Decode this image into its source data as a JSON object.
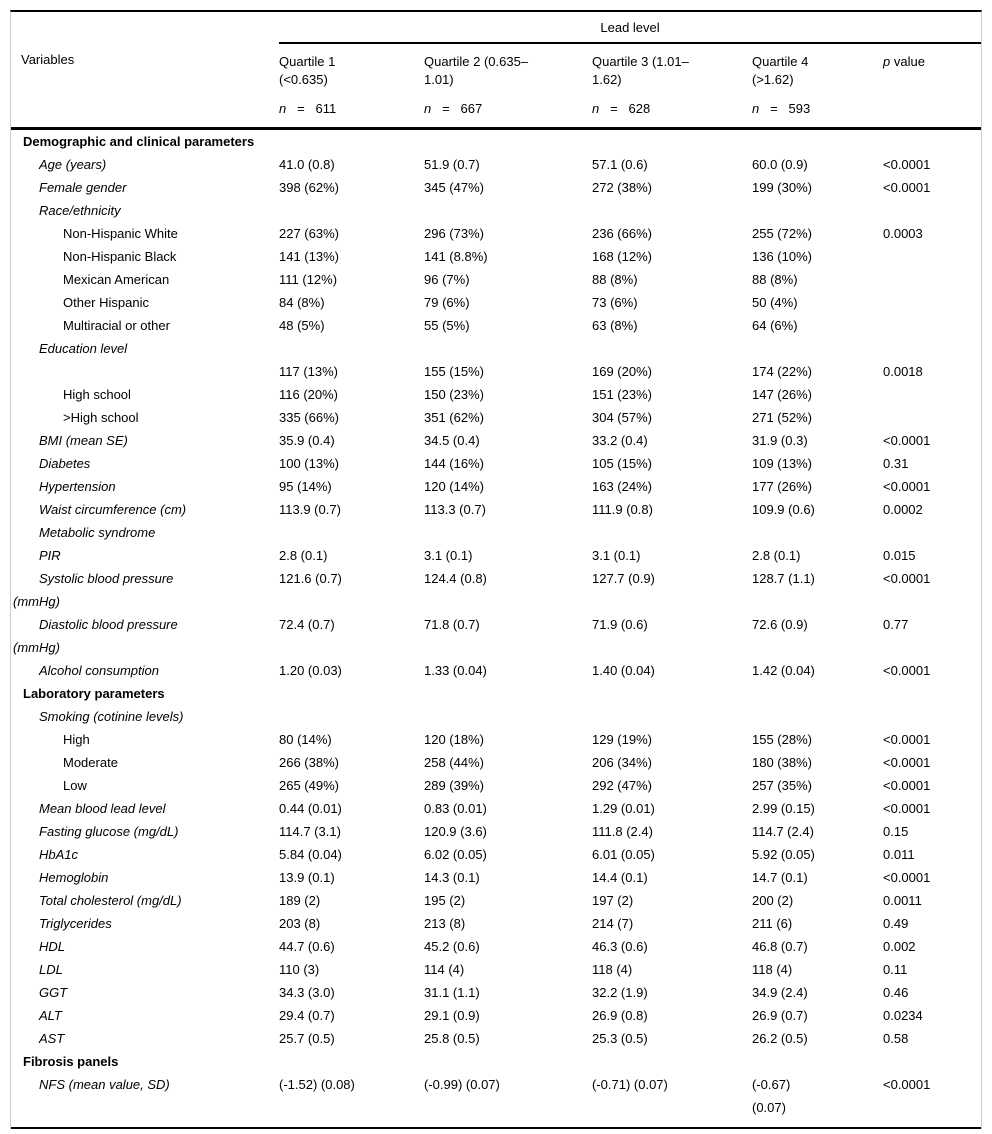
{
  "table": {
    "spanner": "Lead level",
    "variables_header": "Variables",
    "columns": [
      {
        "title": "Quartile 1\n(<0.635)",
        "n_label": "n",
        "n_rest": "   =   611"
      },
      {
        "title": "Quartile 2 (0.635–\n1.01)",
        "n_label": "n",
        "n_rest": "   =   667"
      },
      {
        "title": "Quartile 3 (1.01–\n1.62)",
        "n_label": "n",
        "n_rest": "   =   628"
      },
      {
        "title": "Quartile 4\n(>1.62)",
        "n_label": "n",
        "n_rest": "   =   593"
      }
    ],
    "p_header": {
      "p_label": "p",
      "rest": " value"
    },
    "rows": [
      {
        "label": "Demographic and clinical parameters",
        "level": "section",
        "values": [
          "",
          "",
          "",
          "",
          ""
        ]
      },
      {
        "label": "Age (years)",
        "level": 1,
        "values": [
          "41.0 (0.8)",
          "51.9 (0.7)",
          "57.1 (0.6)",
          "60.0 (0.9)",
          "<0.0001"
        ]
      },
      {
        "label": "Female gender",
        "level": 1,
        "values": [
          "398 (62%)",
          "345 (47%)",
          "272 (38%)",
          "199 (30%)",
          "<0.0001"
        ]
      },
      {
        "label": "Race/ethnicity",
        "level": 1,
        "values": [
          "",
          "",
          "",
          "",
          ""
        ]
      },
      {
        "label": "Non-Hispanic White",
        "level": 2,
        "values": [
          "227 (63%)",
          "296 (73%)",
          "236 (66%)",
          "255 (72%)",
          "0.0003"
        ]
      },
      {
        "label": "Non-Hispanic Black",
        "level": 2,
        "values": [
          "141 (13%)",
          "141 (8.8%)",
          "168 (12%)",
          "136 (10%)",
          ""
        ]
      },
      {
        "label": "Mexican American",
        "level": 2,
        "values": [
          "111 (12%)",
          "96 (7%)",
          "88 (8%)",
          "88 (8%)",
          ""
        ]
      },
      {
        "label": "Other Hispanic",
        "level": 2,
        "values": [
          "84 (8%)",
          "79 (6%)",
          "73 (6%)",
          "50 (4%)",
          ""
        ]
      },
      {
        "label": "Multiracial or other",
        "level": 2,
        "values": [
          "48 (5%)",
          "55 (5%)",
          "63 (8%)",
          "64 (6%)",
          ""
        ]
      },
      {
        "label": "Education level",
        "level": 1,
        "values": [
          "",
          "",
          "",
          "",
          ""
        ]
      },
      {
        "label": "",
        "level": 2,
        "values": [
          "117 (13%)",
          "155 (15%)",
          "169 (20%)",
          "174 (22%)",
          "0.0018"
        ]
      },
      {
        "label": "High school",
        "level": 2,
        "values": [
          "116 (20%)",
          "150 (23%)",
          "151 (23%)",
          "147 (26%)",
          ""
        ]
      },
      {
        "label": ">High school",
        "level": 2,
        "values": [
          "335 (66%)",
          "351 (62%)",
          "304 (57%)",
          "271 (52%)",
          ""
        ]
      },
      {
        "label": "BMI (mean SE)",
        "level": 1,
        "values": [
          "35.9 (0.4)",
          "34.5 (0.4)",
          "33.2 (0.4)",
          "31.9 (0.3)",
          "<0.0001"
        ]
      },
      {
        "label": "Diabetes",
        "level": 1,
        "values": [
          "100 (13%)",
          "144 (16%)",
          "105 (15%)",
          "109 (13%)",
          "0.31"
        ]
      },
      {
        "label": "Hypertension",
        "level": 1,
        "values": [
          "95 (14%)",
          "120 (14%)",
          "163 (24%)",
          "177 (26%)",
          "<0.0001"
        ]
      },
      {
        "label": "Waist circumference (cm)",
        "level": 1,
        "values": [
          "113.9 (0.7)",
          "113.3 (0.7)",
          "111.9 (0.8)",
          "109.9 (0.6)",
          "0.0002"
        ]
      },
      {
        "label": "Metabolic syndrome",
        "level": 1,
        "values": [
          "",
          "",
          "",
          "",
          ""
        ]
      },
      {
        "label": "PIR",
        "level": 1,
        "values": [
          "2.8 (0.1)",
          "3.1 (0.1)",
          "3.1 (0.1)",
          "2.8 (0.1)",
          "0.015"
        ]
      },
      {
        "label": "Systolic blood pressure\n(mmHg)",
        "level": 1,
        "values": [
          "121.6 (0.7)",
          "124.4 (0.8)",
          "127.7 (0.9)",
          "128.7 (1.1)",
          "<0.0001"
        ]
      },
      {
        "label": "Diastolic blood pressure\n(mmHg)",
        "level": 1,
        "values": [
          "72.4 (0.7)",
          "71.8 (0.7)",
          "71.9 (0.6)",
          "72.6 (0.9)",
          "0.77"
        ]
      },
      {
        "label": "Alcohol consumption",
        "level": 1,
        "values": [
          "1.20 (0.03)",
          "1.33 (0.04)",
          "1.40 (0.04)",
          "1.42 (0.04)",
          "<0.0001"
        ]
      },
      {
        "label": "Laboratory parameters",
        "level": "section",
        "values": [
          "",
          "",
          "",
          "",
          ""
        ]
      },
      {
        "label": "Smoking (cotinine levels)",
        "level": 1,
        "values": [
          "",
          "",
          "",
          "",
          ""
        ]
      },
      {
        "label": "High",
        "level": 2,
        "values": [
          "80 (14%)",
          "120 (18%)",
          "129 (19%)",
          "155 (28%)",
          "<0.0001"
        ]
      },
      {
        "label": "Moderate",
        "level": 2,
        "values": [
          "266 (38%)",
          "258 (44%)",
          "206 (34%)",
          "180 (38%)",
          "<0.0001"
        ]
      },
      {
        "label": "Low",
        "level": 2,
        "values": [
          "265 (49%)",
          "289 (39%)",
          "292 (47%)",
          "257 (35%)",
          "<0.0001"
        ]
      },
      {
        "label": "Mean blood lead level",
        "level": 1,
        "values": [
          "0.44 (0.01)",
          "0.83 (0.01)",
          "1.29 (0.01)",
          "2.99 (0.15)",
          "<0.0001"
        ]
      },
      {
        "label": "Fasting glucose (mg/dL)",
        "level": 1,
        "values": [
          "114.7 (3.1)",
          "120.9 (3.6)",
          "111.8 (2.4)",
          "114.7 (2.4)",
          "0.15"
        ]
      },
      {
        "label": "HbA1c",
        "level": 1,
        "values": [
          "5.84 (0.04)",
          "6.02 (0.05)",
          "6.01 (0.05)",
          "5.92 (0.05)",
          "0.011"
        ]
      },
      {
        "label": "Hemoglobin",
        "level": 1,
        "values": [
          "13.9 (0.1)",
          "14.3 (0.1)",
          "14.4 (0.1)",
          "14.7 (0.1)",
          "<0.0001"
        ]
      },
      {
        "label": "Total cholesterol (mg/dL)",
        "level": 1,
        "values": [
          "189 (2)",
          "195 (2)",
          "197 (2)",
          "200 (2)",
          "0.0011"
        ]
      },
      {
        "label": "Triglycerides",
        "level": 1,
        "values": [
          "203 (8)",
          "213 (8)",
          "214 (7)",
          "211 (6)",
          "0.49"
        ]
      },
      {
        "label": "HDL",
        "level": 1,
        "values": [
          "44.7 (0.6)",
          "45.2 (0.6)",
          "46.3 (0.6)",
          "46.8 (0.7)",
          "0.002"
        ]
      },
      {
        "label": "LDL",
        "level": 1,
        "values": [
          "110 (3)",
          "114 (4)",
          "118 (4)",
          "118 (4)",
          "0.11"
        ]
      },
      {
        "label": "GGT",
        "level": 1,
        "values": [
          "34.3 (3.0)",
          "31.1 (1.1)",
          "32.2 (1.9)",
          "34.9 (2.4)",
          "0.46"
        ]
      },
      {
        "label": "ALT",
        "level": 1,
        "values": [
          "29.4 (0.7)",
          "29.1 (0.9)",
          "26.9 (0.8)",
          "26.9 (0.7)",
          "0.0234"
        ]
      },
      {
        "label": "AST",
        "level": 1,
        "values": [
          "25.7 (0.5)",
          "25.8 (0.5)",
          "25.3 (0.5)",
          "26.2 (0.5)",
          "0.58"
        ]
      },
      {
        "label": "Fibrosis panels",
        "level": "section",
        "values": [
          "",
          "",
          "",
          "",
          ""
        ]
      },
      {
        "label": "NFS (mean value, SD)",
        "level": 1,
        "values": [
          "(-1.52) (0.08)",
          "(-0.99) (0.07)",
          "(-0.71) (0.07)",
          "(-0.67)\n(0.07)",
          "<0.0001"
        ]
      }
    ]
  }
}
